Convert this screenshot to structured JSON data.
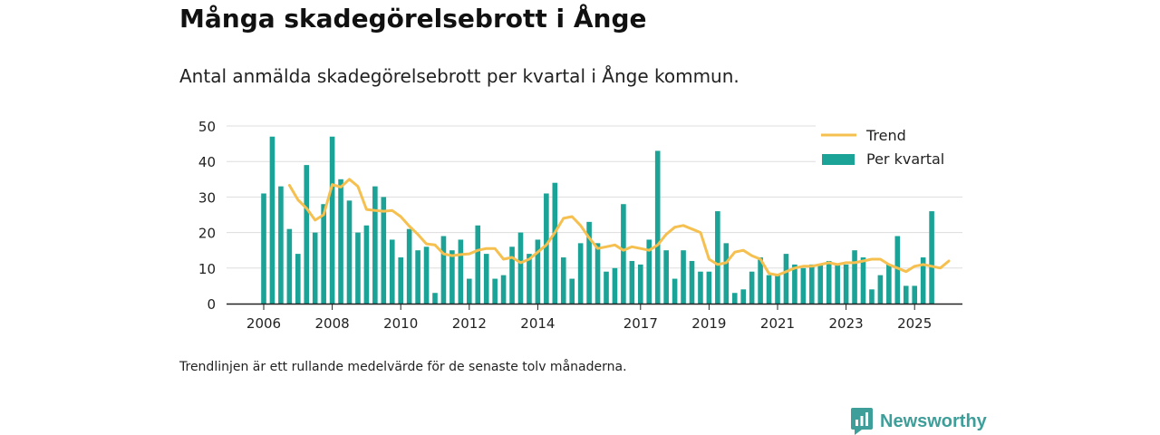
{
  "title": "Många skadegörelsebrott i Ånge",
  "subtitle": "Antal anmälda skadegörelsebrott per kvartal i Ånge kommun.",
  "footnote": "Trendlinjen är ett rullande medelvärde för de senaste tolv månaderna.",
  "brand": "Newsworthy",
  "colors": {
    "bar": "#1aa396",
    "trend": "#f5c04f",
    "grid": "#dddddd",
    "axis": "#222222",
    "brand": "#3d9e9a"
  },
  "chart_data": {
    "type": "bar",
    "x_start": 2006.0,
    "x_step": 0.25,
    "ylim": [
      0,
      50
    ],
    "yticks": [
      0,
      10,
      20,
      30,
      40,
      50
    ],
    "xticks": [
      {
        "value": 2006,
        "label": "2006"
      },
      {
        "value": 2008,
        "label": "2008"
      },
      {
        "value": 2010,
        "label": "2010"
      },
      {
        "value": 2012,
        "label": "2012"
      },
      {
        "value": 2014,
        "label": "2014"
      },
      {
        "value": 2017,
        "label": "2017"
      },
      {
        "value": 2019,
        "label": "2019"
      },
      {
        "value": 2021,
        "label": "2021"
      },
      {
        "value": 2023,
        "label": "2023"
      },
      {
        "value": 2025,
        "label": "2025"
      }
    ],
    "legend": [
      {
        "key": "trend",
        "label": "Trend"
      },
      {
        "key": "bars",
        "label": "Per kvartal"
      }
    ],
    "series": [
      {
        "name": "Per kvartal",
        "type": "bar",
        "values": [
          31,
          47,
          33,
          21,
          14,
          39,
          20,
          28,
          47,
          35,
          29,
          20,
          22,
          33,
          30,
          18,
          13,
          21,
          15,
          16,
          3,
          19,
          15,
          18,
          7,
          22,
          14,
          7,
          8,
          16,
          20,
          14,
          18,
          31,
          34,
          13,
          7,
          17,
          23,
          17,
          9,
          10,
          28,
          12,
          11,
          18,
          43,
          15,
          7,
          15,
          12,
          9,
          9,
          26,
          17,
          3,
          4,
          9,
          13,
          8,
          8,
          14,
          11,
          10,
          11,
          11,
          12,
          11,
          11,
          15,
          13,
          4,
          8,
          11,
          19,
          5,
          5,
          13,
          26
        ]
      },
      {
        "name": "Trend",
        "type": "line",
        "x_start": 2006.75,
        "values": [
          33.3,
          29.2,
          26.8,
          23.5,
          25.0,
          33.5,
          32.8,
          35.0,
          33.0,
          26.5,
          26.2,
          26.0,
          26.2,
          24.5,
          21.8,
          19.5,
          16.8,
          16.5,
          14.0,
          13.5,
          13.8,
          14.0,
          15.0,
          15.5,
          15.5,
          12.5,
          13.0,
          11.5,
          12.5,
          14.5,
          16.5,
          20.0,
          24.0,
          24.5,
          22.0,
          18.5,
          15.5,
          16.0,
          16.5,
          15.0,
          16.0,
          15.5,
          15.0,
          16.5,
          19.5,
          21.5,
          22.0,
          21.0,
          20.0,
          12.5,
          11.0,
          11.5,
          14.5,
          15.0,
          13.5,
          12.5,
          8.5,
          8.0,
          9.0,
          10.0,
          10.5,
          10.5,
          11.0,
          11.5,
          11.0,
          11.5,
          11.5,
          12.0,
          12.5,
          12.5,
          11.0,
          10.0,
          9.0,
          10.5,
          11.0,
          10.5,
          10.0,
          12.0
        ]
      }
    ]
  }
}
